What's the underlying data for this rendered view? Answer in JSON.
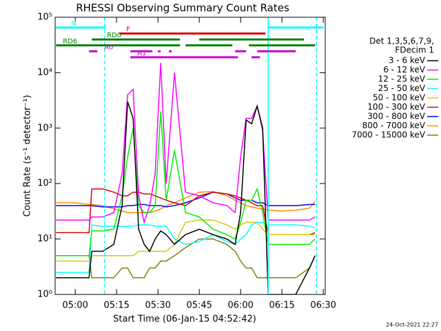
{
  "chart_data": {
    "type": "line",
    "title": "RHESSI Observing Summary Count Rates",
    "x_label": "Start Time (06-Jan-15 04:52:42)",
    "y_label": "Count Rate (s⁻¹ detector⁻¹)",
    "log_y": true,
    "xlim": [
      292.7,
      390.7
    ],
    "ylim": [
      1,
      100000
    ],
    "xticks": [
      {
        "value": 300,
        "label": "05:00"
      },
      {
        "value": 315,
        "label": "05:15"
      },
      {
        "value": 330,
        "label": "05:30"
      },
      {
        "value": 345,
        "label": "05:45"
      },
      {
        "value": 360,
        "label": "06:00"
      },
      {
        "value": 375,
        "label": "06:15"
      },
      {
        "value": 390,
        "label": "06:30"
      }
    ],
    "yticks": [
      {
        "value": 1,
        "label": "10⁰"
      },
      {
        "value": 10,
        "label": "10¹"
      },
      {
        "value": 100,
        "label": "10²"
      },
      {
        "value": 1000,
        "label": "10³"
      },
      {
        "value": 10000,
        "label": "10⁴"
      },
      {
        "value": 100000,
        "label": "10⁵"
      }
    ],
    "legend_title": [
      "Det 1,3,5,6,7,9,",
      "FDecim 1"
    ],
    "footer": "24-Oct-2021 22:27",
    "x": [
      293,
      300,
      305,
      306,
      310,
      314,
      317,
      319,
      321,
      323,
      325,
      327,
      329,
      331,
      333,
      336,
      340,
      345,
      350,
      355,
      358,
      360,
      362,
      364,
      366,
      368,
      370,
      375,
      380,
      385,
      387
    ],
    "series": [
      {
        "name": "3 - 6 keV",
        "color": "#000000",
        "values": [
          2,
          2,
          2,
          6,
          6,
          8,
          40,
          3000,
          1500,
          15,
          8,
          6,
          10,
          14,
          12,
          8,
          12,
          15,
          12,
          10,
          8,
          30,
          1400,
          1200,
          2500,
          1000,
          1,
          1,
          1,
          3,
          5
        ]
      },
      {
        "name": "6 - 12 keV",
        "color": "#ff00ff",
        "values": [
          22,
          22,
          22,
          25,
          25,
          30,
          150,
          4000,
          5000,
          60,
          20,
          40,
          150,
          15000,
          100,
          10000,
          70,
          60,
          45,
          40,
          30,
          300,
          1500,
          1500,
          2500,
          900,
          22,
          22,
          22,
          22,
          25
        ]
      },
      {
        "name": "12 - 25 keV",
        "color": "#00ee00",
        "values": [
          5,
          5,
          5,
          14,
          14,
          15,
          60,
          300,
          1000,
          40,
          30,
          30,
          40,
          2000,
          50,
          400,
          30,
          25,
          15,
          12,
          10,
          20,
          50,
          50,
          80,
          30,
          8,
          8,
          8,
          8,
          10
        ]
      },
      {
        "name": "25 - 50 keV",
        "color": "#00ffff",
        "values": [
          2.5,
          2.5,
          2.5,
          18,
          17,
          17,
          17,
          17,
          17,
          18,
          18,
          18,
          17,
          17,
          17,
          10,
          8,
          9,
          12,
          9,
          8,
          10,
          12,
          18,
          20,
          20,
          18,
          18,
          18,
          17,
          16
        ]
      },
      {
        "name": "50 - 100 keV",
        "color": "#d8c800",
        "values": [
          4,
          4,
          4,
          5,
          5,
          5,
          5,
          5,
          5,
          6,
          6,
          6,
          6,
          6,
          6,
          8,
          20,
          22,
          22,
          18,
          15,
          18,
          20,
          20,
          20,
          15,
          12,
          12,
          12,
          12,
          12
        ]
      },
      {
        "name": "100 - 300 keV",
        "color": "#dd0000",
        "values": [
          13,
          13,
          13,
          80,
          80,
          70,
          60,
          60,
          70,
          70,
          65,
          65,
          60,
          55,
          50,
          45,
          40,
          60,
          70,
          65,
          60,
          55,
          50,
          45,
          40,
          40,
          12,
          12,
          12,
          12,
          13
        ]
      },
      {
        "name": "300 - 800 keV",
        "color": "#0000ff",
        "values": [
          40,
          40,
          40,
          40,
          38,
          38,
          38,
          40,
          40,
          42,
          42,
          40,
          40,
          40,
          38,
          40,
          45,
          55,
          70,
          65,
          55,
          50,
          50,
          50,
          45,
          45,
          40,
          40,
          40,
          42,
          42
        ]
      },
      {
        "name": "800 - 7000 keV",
        "color": "#ff8c00",
        "values": [
          45,
          45,
          42,
          42,
          40,
          35,
          32,
          30,
          30,
          30,
          30,
          30,
          32,
          35,
          40,
          45,
          55,
          70,
          72,
          60,
          50,
          45,
          40,
          38,
          36,
          35,
          33,
          32,
          33,
          36,
          48
        ]
      },
      {
        "name": "7000 - 15000 keV",
        "color": "#808000",
        "values": [
          5,
          5,
          5,
          2,
          2,
          2,
          3,
          3,
          2,
          2,
          2,
          3,
          3,
          4,
          4,
          5,
          7,
          10,
          10,
          8,
          6,
          4,
          3,
          3,
          2,
          2,
          2,
          2,
          2,
          3,
          5
        ]
      }
    ],
    "flags": [
      {
        "label": "N",
        "color": "#00ffff",
        "segments": [
          [
            293,
            311
          ],
          [
            370,
            390
          ]
        ]
      },
      {
        "label": "F",
        "color": "#dd0000",
        "segments": [
          [
            316,
            369
          ]
        ]
      },
      {
        "label": "RD0",
        "color": "#008000",
        "segments": [
          [
            306,
            338
          ],
          [
            345,
            383
          ]
        ]
      },
      {
        "label": "RD6",
        "color": "#008000",
        "segments": [
          [
            293,
            338
          ],
          [
            340,
            357
          ],
          [
            363,
            387
          ]
        ]
      },
      {
        "label": "A0",
        "color": "#cc00cc",
        "segments": [
          [
            305,
            308
          ],
          [
            320,
            328
          ],
          [
            330,
            331
          ],
          [
            334,
            335
          ],
          [
            358,
            362
          ],
          [
            366,
            380
          ]
        ]
      },
      {
        "label": "A1",
        "color": "#cc00cc",
        "segments": [
          [
            320,
            359
          ],
          [
            364,
            367
          ]
        ]
      }
    ],
    "vlines": [
      {
        "x": 310.7,
        "dashed": true,
        "color": "#00ffff"
      },
      {
        "x": 370,
        "dashed": false,
        "color": "#00ffff"
      },
      {
        "x": 387.5,
        "dashed": true,
        "color": "#00ffff"
      }
    ]
  }
}
